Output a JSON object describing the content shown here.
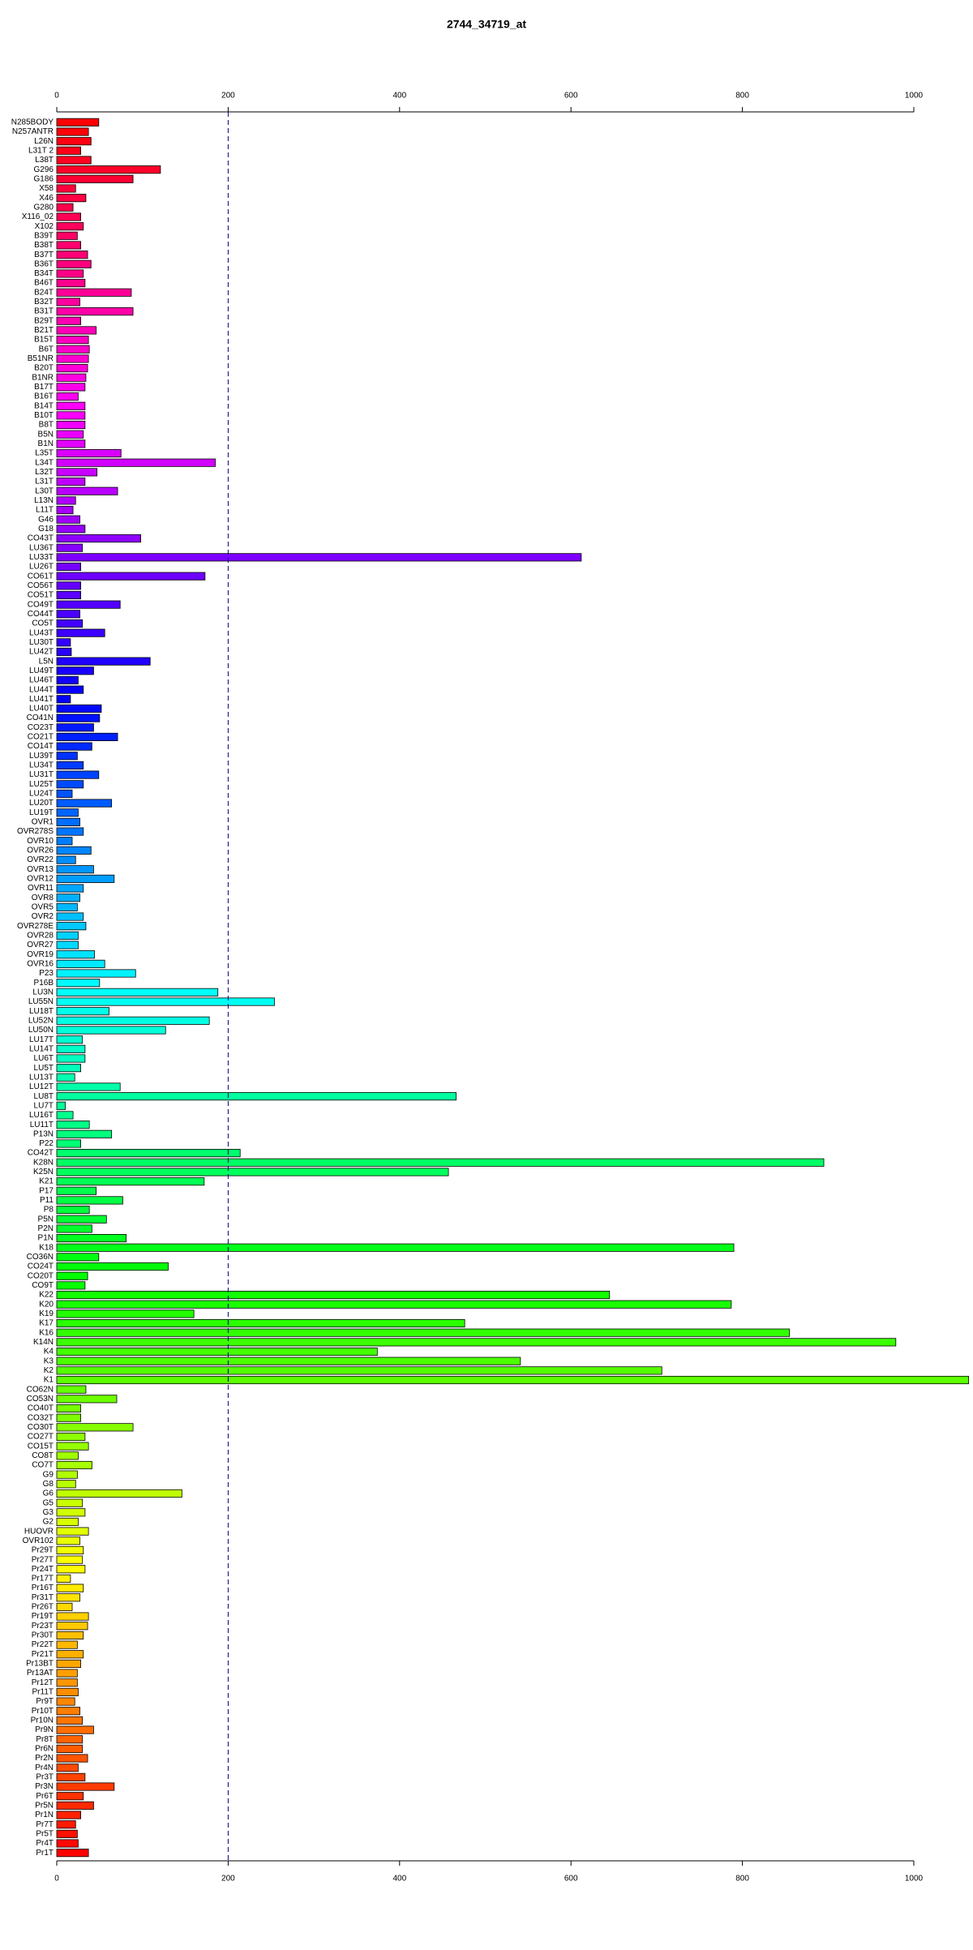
{
  "chart_data": {
    "type": "bar",
    "orientation": "horizontal",
    "title": "2744_34719_at",
    "categories": [
      "N285BODY",
      "N257ANTR",
      "L26N",
      "L31T 2",
      "L38T",
      "G296",
      "G186",
      "X58",
      "X46",
      "G280",
      "X116_02",
      "X102",
      "B39T",
      "B38T",
      "B37T",
      "B36T",
      "B34T",
      "B46T",
      "B24T",
      "B32T",
      "B31T",
      "B29T",
      "B21T",
      "B15T",
      "B6T",
      "B51NR",
      "B20T",
      "B1NR",
      "B17T",
      "B16T",
      "B14T",
      "B10T",
      "B8T",
      "B5N",
      "B1N",
      "L35T",
      "L34T",
      "L32T",
      "L31T",
      "L30T",
      "L13N",
      "L11T",
      "G46",
      "G18",
      "CO43T",
      "LU36T",
      "LU33T",
      "LU26T",
      "CO61T",
      "CO56T",
      "CO51T",
      "CO49T",
      "CO44T",
      "CO5T",
      "LU43T",
      "LU30T",
      "LU42T",
      "L5N",
      "LU49T",
      "LU46T",
      "LU44T",
      "LU41T",
      "LU40T",
      "CO41N",
      "CO23T",
      "CO21T",
      "CO14T",
      "LU39T",
      "LU34T",
      "LU31T",
      "LU25T",
      "LU24T",
      "LU20T",
      "LU19T",
      "OVR1",
      "OVR278S",
      "OVR10",
      "OVR26",
      "OVR22",
      "OVR13",
      "OVR12",
      "OVR11",
      "OVR8",
      "OVR5",
      "OVR2",
      "OVR278E",
      "OVR28",
      "OVR27",
      "OVR19",
      "OVR16",
      "P23",
      "P16B",
      "LU3N",
      "LU55N",
      "LU18T",
      "LU52N",
      "LU50N",
      "LU17T",
      "LU14T",
      "LU6T",
      "LU5T",
      "LU13T",
      "LU12T",
      "LU8T",
      "LU7T",
      "LU16T",
      "LU11T",
      "P13N",
      "P22",
      "CO42T",
      "K28N",
      "K25N",
      "K21",
      "P17",
      "P11",
      "P8",
      "P5N",
      "P2N",
      "P1N",
      "K18",
      "CO36N",
      "CO24T",
      "CO20T",
      "CO9T",
      "K22",
      "K20",
      "K19",
      "K17",
      "K16",
      "K14N",
      "K4",
      "K3",
      "K2",
      "K1",
      "CO62N",
      "CO53N",
      "CO40T",
      "CO32T",
      "CO30T",
      "CO27T",
      "CO15T",
      "CO8T",
      "CO7T",
      "G9",
      "G8",
      "G6",
      "G5",
      "G3",
      "G2",
      "HUOVR",
      "OVR102",
      "Pr29T",
      "Pr27T",
      "Pr24T",
      "Pr17T",
      "Pr16T",
      "Pr31T",
      "Pr26T",
      "Pr19T",
      "Pr23T",
      "Pr30T",
      "Pr22T",
      "Pr21T",
      "Pr13BT",
      "Pr13AT",
      "Pr12T",
      "Pr11T",
      "Pr9T",
      "Pr10T",
      "Pr10N",
      "Pr9N",
      "Pr8T",
      "Pr6N",
      "Pr2N",
      "Pr4N",
      "Pr3T",
      "Pr3N",
      "Pr6T",
      "Pr5N",
      "Pr1N",
      "Pr7T",
      "Pr5T",
      "Pr4T",
      "Pr1T"
    ],
    "values": [
      49,
      37,
      40,
      28,
      40,
      121,
      89,
      22,
      34,
      19,
      28,
      31,
      24,
      28,
      36,
      40,
      31,
      33,
      87,
      27,
      89,
      28,
      46,
      37,
      38,
      37,
      36,
      34,
      33,
      25,
      33,
      33,
      33,
      31,
      33,
      75,
      185,
      47,
      33,
      71,
      22,
      19,
      27,
      33,
      98,
      30,
      612,
      28,
      173,
      28,
      28,
      74,
      27,
      30,
      56,
      16,
      17,
      109,
      43,
      25,
      31,
      16,
      52,
      50,
      43,
      71,
      41,
      24,
      31,
      49,
      31,
      18,
      64,
      25,
      27,
      31,
      18,
      40,
      22,
      43,
      67,
      31,
      27,
      24,
      31,
      34,
      25,
      25,
      44,
      56,
      92,
      50,
      188,
      254,
      61,
      178,
      127,
      30,
      33,
      33,
      28,
      21,
      74,
      466,
      10,
      19,
      38,
      64,
      28,
      214,
      895,
      457,
      172,
      46,
      77,
      38,
      58,
      41,
      81,
      790,
      49,
      130,
      36,
      33,
      645,
      787,
      160,
      476,
      855,
      979,
      374,
      541,
      706,
      1064,
      34,
      70,
      28,
      28,
      89,
      33,
      37,
      25,
      41,
      24,
      22,
      146,
      30,
      33,
      25,
      37,
      27,
      31,
      30,
      33,
      16,
      31,
      27,
      18,
      37,
      36,
      31,
      24,
      31,
      28,
      24,
      24,
      25,
      21,
      27,
      30,
      43,
      30,
      30,
      36,
      25,
      33,
      67,
      31,
      43,
      28,
      22,
      24,
      25,
      37
    ],
    "palette": "rainbow",
    "xlim": [
      0,
      1000
    ],
    "xticks": [
      0,
      200,
      400,
      600,
      800,
      1000
    ],
    "reference_line": 200
  }
}
